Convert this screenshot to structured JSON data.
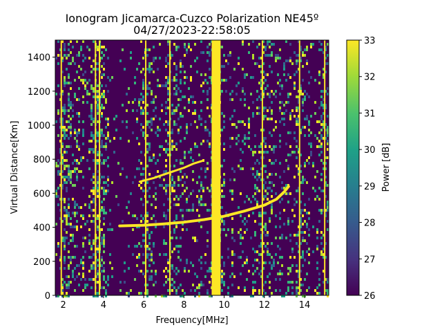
{
  "chart_data": {
    "type": "heatmap",
    "title": "Ionogram Jicamarca-Cuzco Polarization NE45º",
    "subtitle": "04/27/2023-22:58:05",
    "xlabel": "Frequency[MHz]",
    "ylabel": "Virtual Distance[Km]",
    "xlim": [
      1.6,
      15.2
    ],
    "ylim": [
      0,
      1500
    ],
    "xticks": [
      2,
      4,
      6,
      8,
      10,
      12,
      14
    ],
    "yticks": [
      0,
      200,
      400,
      600,
      800,
      1000,
      1200,
      1400
    ],
    "colorbar": {
      "label": "Power [dB]",
      "range": [
        26,
        33
      ],
      "ticks": [
        26,
        27,
        28,
        29,
        30,
        31,
        32,
        33
      ],
      "colormap": "viridis"
    },
    "interference_bands_mhz": [
      1.9,
      3.6,
      3.8,
      6.1,
      7.3,
      9.6,
      11.9,
      13.75,
      15.0
    ],
    "traces": [
      {
        "name": "lower trace (O)",
        "points": [
          [
            4.8,
            408
          ],
          [
            6.0,
            412
          ],
          [
            7.0,
            420
          ],
          [
            8.0,
            430
          ],
          [
            9.0,
            445
          ],
          [
            10.0,
            465
          ],
          [
            11.0,
            495
          ],
          [
            12.0,
            530
          ],
          [
            12.6,
            565
          ],
          [
            13.0,
            610
          ],
          [
            13.2,
            640
          ]
        ]
      },
      {
        "name": "upper trace (X)",
        "points": [
          [
            5.8,
            668
          ],
          [
            6.5,
            690
          ],
          [
            7.0,
            710
          ],
          [
            7.5,
            730
          ],
          [
            8.0,
            750
          ],
          [
            8.5,
            775
          ],
          [
            8.9,
            790
          ]
        ]
      }
    ]
  }
}
